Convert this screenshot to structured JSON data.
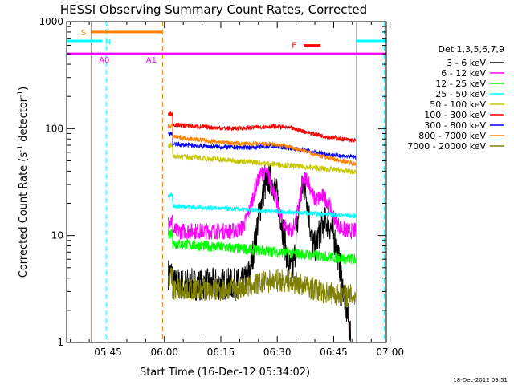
{
  "chart_data": {
    "type": "line",
    "title": "HESSI Observing Summary Count Rates, Corrected",
    "xlabel": "Start Time (16-Dec-12 05:34:02)",
    "ylabel": "Corrected Count Rate (s",
    "ylabel_sup1": "-1",
    "ylabel_mid": " detector",
    "ylabel_sup2": "-1",
    "ylabel_end": ")",
    "yscale": "log",
    "ylim": [
      1,
      1000
    ],
    "xlim_minutes": [
      0,
      85
    ],
    "x_ticks": [
      {
        "minute": 11,
        "label": "05:45"
      },
      {
        "minute": 26,
        "label": "06:00"
      },
      {
        "minute": 41,
        "label": "06:15"
      },
      {
        "minute": 56,
        "label": "06:30"
      },
      {
        "minute": 71,
        "label": "06:45"
      },
      {
        "minute": 86,
        "label": "07:00"
      }
    ],
    "y_ticks": [
      {
        "value": 1,
        "label": "1"
      },
      {
        "value": 10,
        "label": "10"
      },
      {
        "value": 100,
        "label": "100"
      },
      {
        "value": 1000,
        "label": "1000"
      }
    ],
    "grid": false,
    "legend_position": "right",
    "legend_title": "Det 1,3,5,6,7,9",
    "series": [
      {
        "name": "3 - 6 keV",
        "color": "#000000",
        "level": 3.5,
        "peaks": [
          {
            "x": 54,
            "amp": 30,
            "w": 3
          },
          {
            "x": 63,
            "amp": 25,
            "w": 1.6
          },
          {
            "x": 69,
            "amp": 10,
            "w": 3
          }
        ],
        "noise": 0.35
      },
      {
        "name": "6 - 12 keV",
        "color": "#ff00ff",
        "level": 11,
        "peaks": [
          {
            "x": 52.5,
            "amp": 28,
            "w": 3.2
          },
          {
            "x": 63.5,
            "amp": 22,
            "w": 1.8
          },
          {
            "x": 68,
            "amp": 12,
            "w": 3
          }
        ],
        "noise": 0.18
      },
      {
        "name": "12 - 25 keV",
        "color": "#00ff00",
        "level": 8.5,
        "trend": -0.3,
        "peaks": [],
        "noise": 0.12
      },
      {
        "name": "25 - 50 keV",
        "color": "#00ffff",
        "level": 19,
        "trend": -0.2,
        "peaks": [],
        "noise": 0.05
      },
      {
        "name": "50 - 100 keV",
        "color": "#c8c800",
        "level": 56,
        "trend": -0.3,
        "peaks": [],
        "noise": 0.06
      },
      {
        "name": "100 - 300 keV",
        "color": "#ff0000",
        "level": 110,
        "trend": -0.3,
        "bump": 0.15,
        "peaks": [],
        "noise": 0.05
      },
      {
        "name": "300 - 800 keV",
        "color": "#0000ff",
        "level": 72,
        "trend": -0.25,
        "bump": 0.1,
        "peaks": [],
        "noise": 0.05
      },
      {
        "name": "800 - 7000 keV",
        "color": "#ff8000",
        "level": 85,
        "trend": -0.45,
        "bump": 0.12,
        "peaks": [],
        "noise": 0.05
      },
      {
        "name": "7000 - 20000 keV",
        "color": "#808000",
        "level": 3.2,
        "trend": -0.15,
        "bump": 0.3,
        "peaks": [],
        "noise": 0.25
      }
    ],
    "data_window_minutes": [
      27,
      77
    ],
    "flag_bars": [
      {
        "label": "S",
        "color": "#ff8000",
        "x0": 6.5,
        "x1": 25.5,
        "y": 800
      },
      {
        "label": "F",
        "color": "#ff0000",
        "x0": 63,
        "x1": 67.5,
        "y": 600
      },
      {
        "label": "N",
        "color": "#00ffff",
        "x0": -2,
        "x1": 9.5,
        "y": 660
      },
      {
        "label": "",
        "color": "#00ffff",
        "x0": 77,
        "x1": 88,
        "y": 660
      },
      {
        "label": "A0",
        "color": "#ff00ff",
        "x0": -2,
        "x1": 87,
        "y": 500
      },
      {
        "label": "A1",
        "color": "#ff00ff",
        "x0": 26,
        "x1": 27,
        "y": 500
      }
    ],
    "flag_labels": [
      {
        "text": "S",
        "color": "#ff8000",
        "x": 4.5,
        "y": 800
      },
      {
        "text": "N",
        "color": "#00ffff",
        "x": 11,
        "y": 660
      },
      {
        "text": "A0",
        "color": "#ff00ff",
        "x": 10,
        "y": 445
      },
      {
        "text": "A1",
        "color": "#ff00ff",
        "x": 22.5,
        "y": 445
      },
      {
        "text": "F",
        "color": "#ff0000",
        "x": 60.5,
        "y": 610
      }
    ],
    "vertical_lines": [
      {
        "x": 6.5,
        "color": "#ff8000",
        "style": "solid"
      },
      {
        "x": 10.5,
        "color": "#00ffff",
        "style": "dashed"
      },
      {
        "x": 25.5,
        "color": "#ff8000",
        "style": "dashed"
      },
      {
        "x": 77,
        "color": "#00ffff",
        "style": "solid"
      },
      {
        "x": 84.5,
        "color": "#00ffff",
        "style": "dashed"
      }
    ],
    "timestamp": "18-Dec-2012 09:51"
  }
}
